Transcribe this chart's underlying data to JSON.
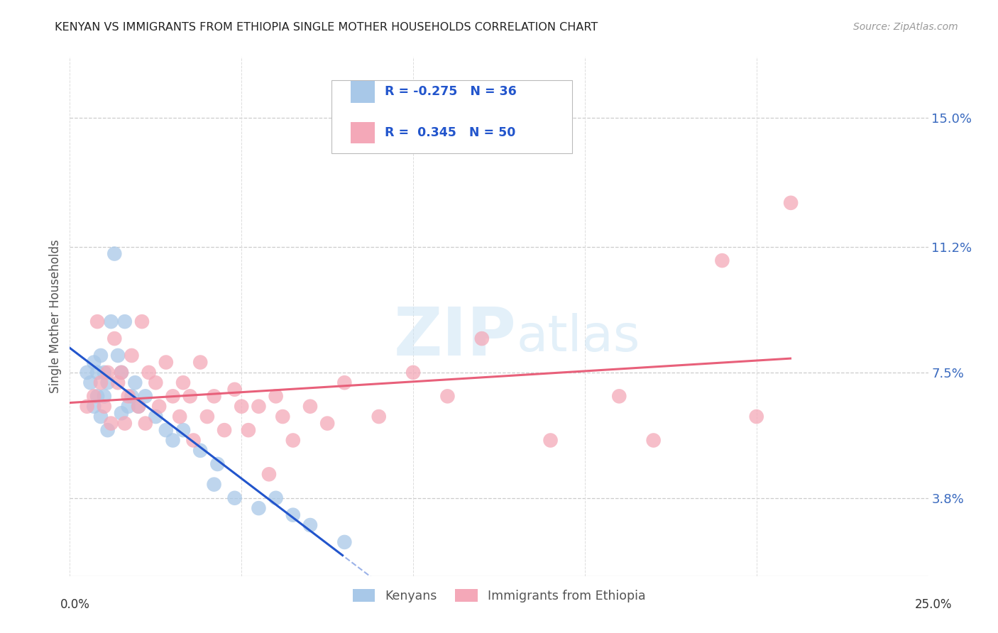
{
  "title": "KENYAN VS IMMIGRANTS FROM ETHIOPIA SINGLE MOTHER HOUSEHOLDS CORRELATION CHART",
  "source": "Source: ZipAtlas.com",
  "ylabel": "Single Mother Households",
  "ytick_labels": [
    "3.8%",
    "7.5%",
    "11.2%",
    "15.0%"
  ],
  "ytick_values": [
    0.038,
    0.075,
    0.112,
    0.15
  ],
  "xlim": [
    0.0,
    0.25
  ],
  "ylim": [
    0.015,
    0.168
  ],
  "legend_kenyans_R": "-0.275",
  "legend_kenyans_N": "36",
  "legend_ethiopia_R": "0.345",
  "legend_ethiopia_N": "50",
  "kenyan_color": "#a8c8e8",
  "ethiopia_color": "#f4a8b8",
  "kenyan_line_color": "#2255cc",
  "ethiopia_line_color": "#e8607a",
  "watermark_zip": "ZIP",
  "watermark_atlas": "atlas",
  "kenyan_x": [
    0.005,
    0.006,
    0.007,
    0.007,
    0.008,
    0.008,
    0.009,
    0.009,
    0.01,
    0.01,
    0.011,
    0.011,
    0.012,
    0.013,
    0.014,
    0.015,
    0.015,
    0.016,
    0.017,
    0.018,
    0.019,
    0.02,
    0.022,
    0.025,
    0.028,
    0.03,
    0.033,
    0.038,
    0.042,
    0.043,
    0.048,
    0.055,
    0.06,
    0.065,
    0.07,
    0.08
  ],
  "kenyan_y": [
    0.075,
    0.072,
    0.078,
    0.065,
    0.075,
    0.068,
    0.08,
    0.062,
    0.075,
    0.068,
    0.072,
    0.058,
    0.09,
    0.11,
    0.08,
    0.075,
    0.063,
    0.09,
    0.065,
    0.068,
    0.072,
    0.065,
    0.068,
    0.062,
    0.058,
    0.055,
    0.058,
    0.052,
    0.042,
    0.048,
    0.038,
    0.035,
    0.038,
    0.033,
    0.03,
    0.025
  ],
  "ethiopia_x": [
    0.005,
    0.007,
    0.008,
    0.009,
    0.01,
    0.011,
    0.012,
    0.013,
    0.014,
    0.015,
    0.016,
    0.017,
    0.018,
    0.02,
    0.021,
    0.022,
    0.023,
    0.025,
    0.026,
    0.028,
    0.03,
    0.032,
    0.033,
    0.035,
    0.036,
    0.038,
    0.04,
    0.042,
    0.045,
    0.048,
    0.05,
    0.052,
    0.055,
    0.058,
    0.06,
    0.062,
    0.065,
    0.07,
    0.075,
    0.08,
    0.09,
    0.1,
    0.11,
    0.12,
    0.14,
    0.16,
    0.17,
    0.19,
    0.2,
    0.21
  ],
  "ethiopia_y": [
    0.065,
    0.068,
    0.09,
    0.072,
    0.065,
    0.075,
    0.06,
    0.085,
    0.072,
    0.075,
    0.06,
    0.068,
    0.08,
    0.065,
    0.09,
    0.06,
    0.075,
    0.072,
    0.065,
    0.078,
    0.068,
    0.062,
    0.072,
    0.068,
    0.055,
    0.078,
    0.062,
    0.068,
    0.058,
    0.07,
    0.065,
    0.058,
    0.065,
    0.045,
    0.068,
    0.062,
    0.055,
    0.065,
    0.06,
    0.072,
    0.062,
    0.075,
    0.068,
    0.085,
    0.055,
    0.068,
    0.055,
    0.108,
    0.062,
    0.125
  ]
}
